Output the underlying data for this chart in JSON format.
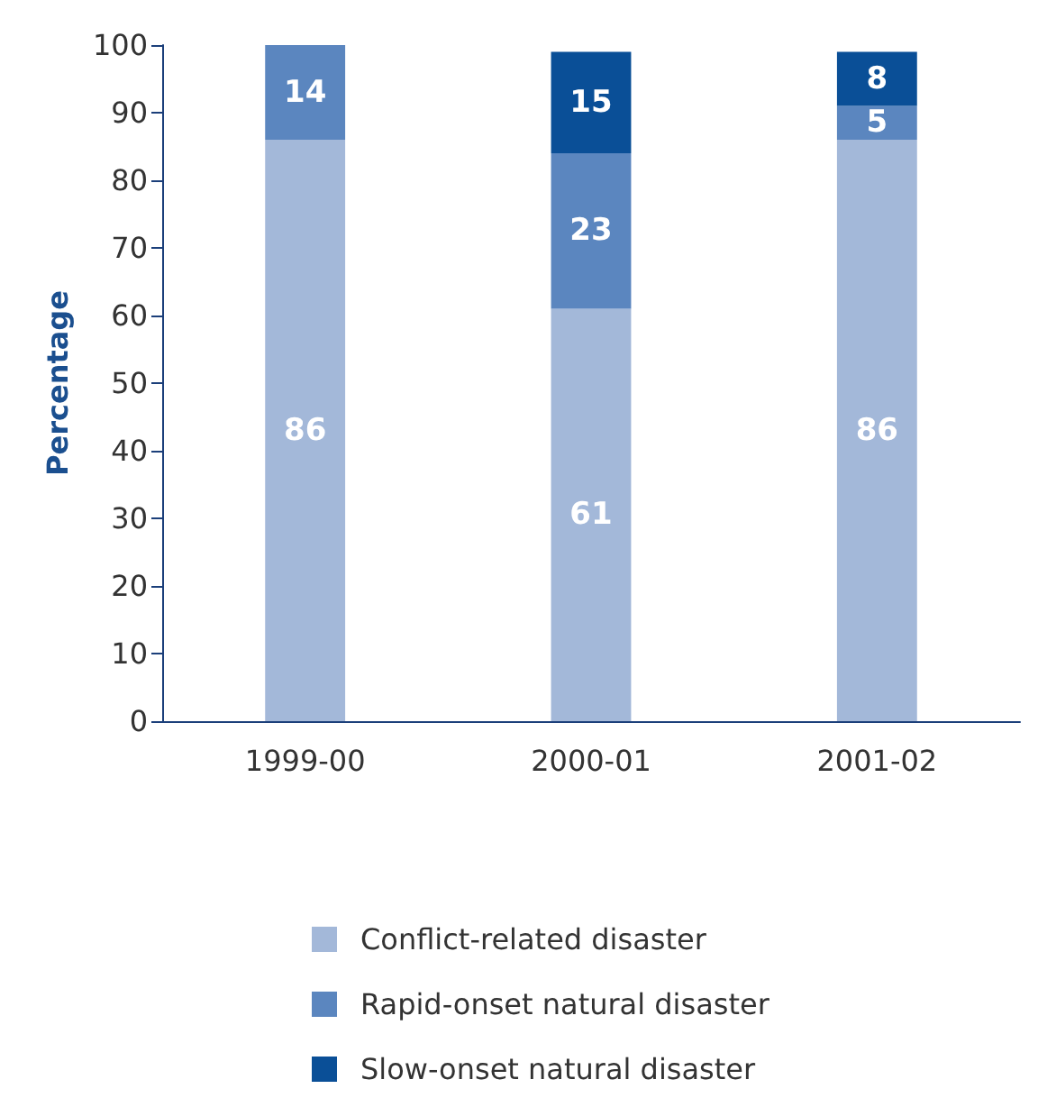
{
  "chart_data": {
    "type": "bar",
    "stacked": true,
    "ylabel": "Percentage",
    "categories": [
      "1999-00",
      "2000-01",
      "2001-02"
    ],
    "series": [
      {
        "name": "Conflict-related disaster",
        "color": "#a3b8d9",
        "values": [
          86,
          61,
          86
        ]
      },
      {
        "name": "Rapid-onset natural disaster",
        "color": "#5b86bf",
        "values": [
          14,
          23,
          5
        ]
      },
      {
        "name": "Slow-onset natural disaster",
        "color": "#0a4f97",
        "values": [
          null,
          15,
          8
        ]
      }
    ],
    "ylim": [
      0,
      100
    ],
    "yticks": [
      0,
      10,
      20,
      30,
      40,
      50,
      60,
      70,
      80,
      90,
      100
    ],
    "grid": false,
    "legend": "bottom",
    "data_labels": true
  }
}
